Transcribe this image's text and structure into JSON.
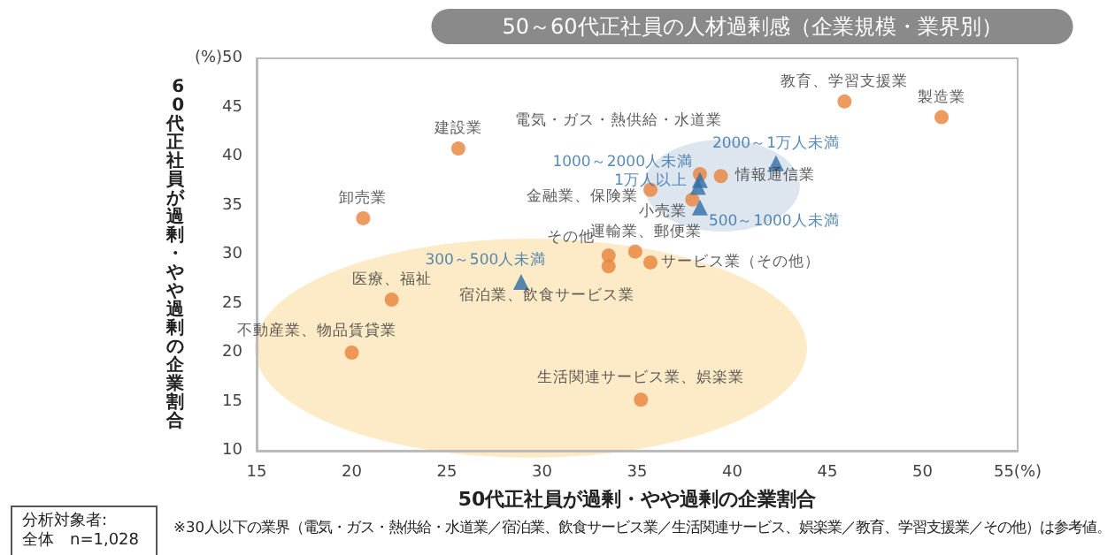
{
  "chart_data": {
    "type": "scatter",
    "title": "50～60代正社員の人材過剰感（企業規模・業界別）",
    "xlabel": "50代正社員が過剰・やや過剰の企業割合",
    "ylabel": "60代正社員が過剰・やや過剰の企業割合",
    "xlim": [
      15,
      55
    ],
    "xticks": [
      15,
      20,
      25,
      30,
      35,
      40,
      45,
      50,
      {
        "value": 55,
        "label": "55(%)"
      }
    ],
    "ylim": [
      10,
      50
    ],
    "yticks": [
      10,
      15,
      20,
      25,
      30,
      35,
      40,
      45,
      {
        "value": 50,
        "label": "(%)50"
      }
    ],
    "grid": false,
    "series": [
      {
        "color": "#e8823a",
        "marker": "circle",
        "x": [
          25.6,
          20.6,
          22.1,
          20.0,
          33.5,
          33.5,
          34.9,
          35.7,
          35.2,
          35.7,
          37.9,
          38.3,
          39.4,
          45.9,
          51.0
        ],
        "values": [
          40.8,
          33.7,
          25.4,
          20.0,
          29.9,
          28.8,
          30.3,
          29.2,
          15.2,
          36.6,
          35.6,
          38.2,
          38.0,
          45.6,
          44.0
        ]
      },
      {
        "color": "#2e6da4",
        "marker": "triangle",
        "x": [
          28.9,
          38.3,
          38.3,
          38.2,
          42.3
        ],
        "values": [
          27.2,
          34.8,
          37.6,
          36.9,
          39.3
        ]
      }
    ],
    "annotations": [
      {
        "text": "建設業",
        "x": 25.6,
        "y": 40.8
      },
      {
        "text": "卸売業",
        "x": 20.6,
        "y": 33.7
      },
      {
        "text": "医療、福祉",
        "x": 22.1,
        "y": 25.4
      },
      {
        "text": "不動産業、物品賃貸業",
        "x": 20.0,
        "y": 20.0
      },
      {
        "text": "その他",
        "x": 33.5,
        "y": 29.9
      },
      {
        "text": "宿泊業、飲食サービス業",
        "x": 33.5,
        "y": 28.8
      },
      {
        "text": "運輸業、郵便業",
        "x": 34.9,
        "y": 30.3
      },
      {
        "text": "サービス業（その他）",
        "x": 35.7,
        "y": 29.2
      },
      {
        "text": "生活関連サービス業、娯楽業",
        "x": 35.2,
        "y": 15.2
      },
      {
        "text": "金融業、保険業",
        "x": 35.7,
        "y": 36.6
      },
      {
        "text": "小売業",
        "x": 37.9,
        "y": 35.6
      },
      {
        "text": "電気・ガス・熱供給・水道業",
        "x": 38.3,
        "y": 38.2
      },
      {
        "text": "情報通信業",
        "x": 39.4,
        "y": 38.0
      },
      {
        "text": "教育、学習支援業",
        "x": 45.9,
        "y": 45.6
      },
      {
        "text": "製造業",
        "x": 51.0,
        "y": 44.0
      },
      {
        "text": "300～500人未満",
        "x": 28.9,
        "y": 27.2
      },
      {
        "text": "500～1000人未満",
        "x": 38.3,
        "y": 34.8
      },
      {
        "text": "1000～2000人未満",
        "x": 38.3,
        "y": 37.6
      },
      {
        "text": "1万人以上",
        "x": 38.2,
        "y": 36.9
      },
      {
        "text": "2000～1万人未満",
        "x": 42.3,
        "y": 39.3
      },
      "分析対象者:\n全体　n=1,028",
      "※30人以下の業界（電気・ガス・熱供給・水道業／宿泊業、飲食サービス業／生活関連サービス、娯楽業／教育、学習支援業／その他）は参考値。"
    ]
  }
}
